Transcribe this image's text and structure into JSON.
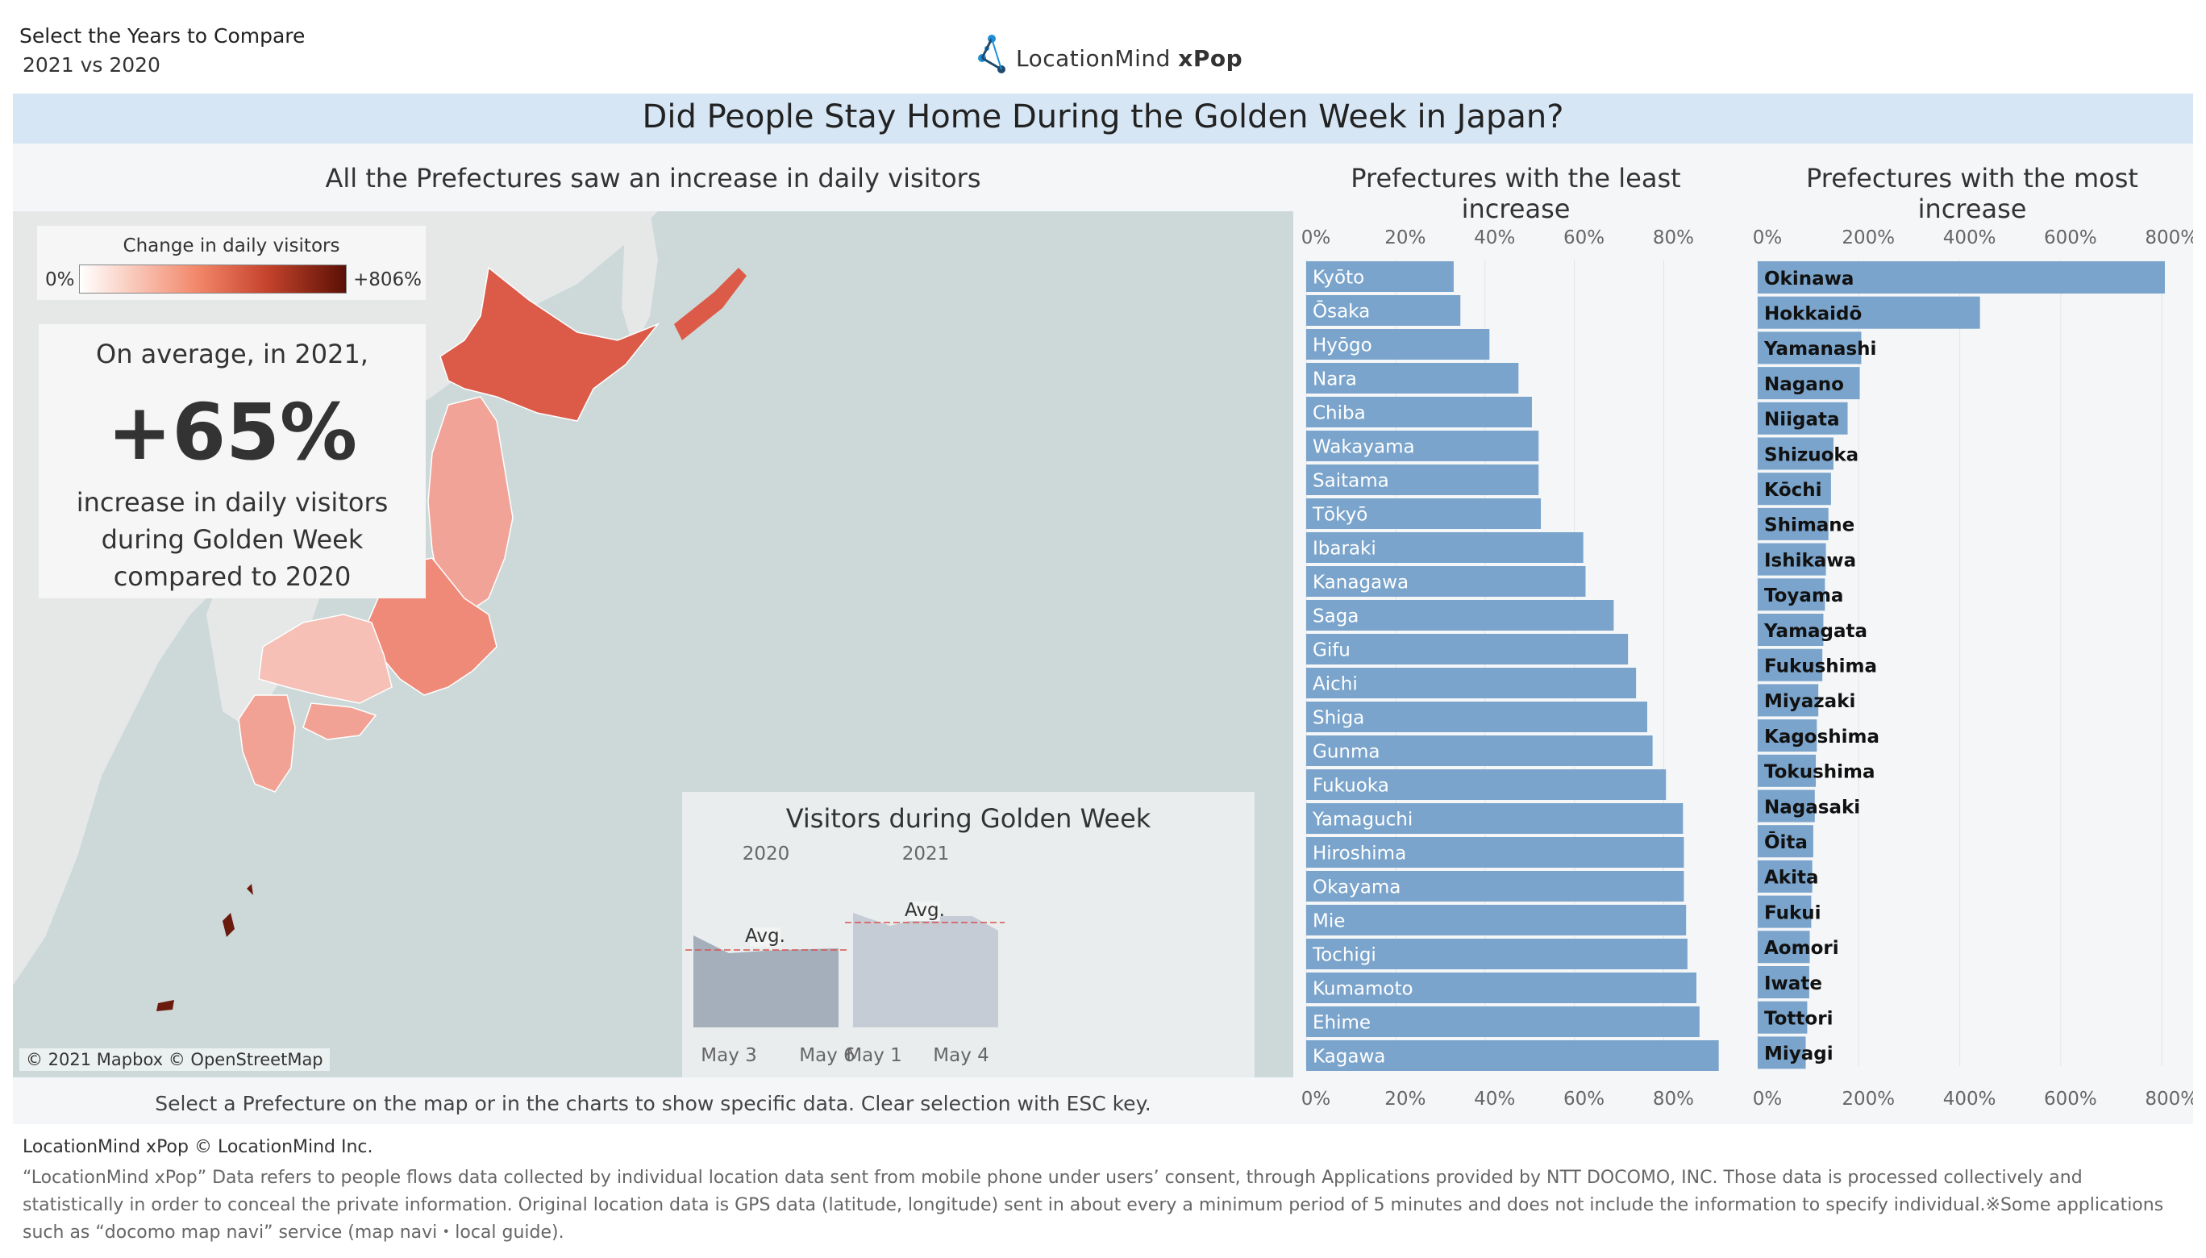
{
  "filter": {
    "label": "Select the Years to Compare",
    "value": "2021 vs 2020"
  },
  "logo": {
    "brand": "LocationMind",
    "product": "xPop"
  },
  "title": "Did People Stay Home During the Golden Week in Japan?",
  "map": {
    "title": "All the Prefectures saw an increase in daily visitors",
    "legend": {
      "title": "Change in daily visitors",
      "min": "0%",
      "max": "+806%"
    },
    "summary": {
      "pre": "On average, in 2021,",
      "value": "+65%",
      "line1": "increase in daily visitors",
      "line2": "during Golden Week",
      "line3": "compared to 2020"
    },
    "attribution": "© 2021 Mapbox © OpenStreetMap",
    "hint": "Select a Prefecture on the map or in the charts to show specific data. Clear selection with ESC key."
  },
  "inset": {
    "title": "Visitors during Golden Week",
    "year_a": "2020",
    "year_b": "2021",
    "avg_label": "Avg.",
    "x_labels_a": [
      "May 3",
      "May 6"
    ],
    "x_labels_b": [
      "May 1",
      "May 4"
    ]
  },
  "colors": {
    "bar": "#7aa4cb",
    "title_band": "#d6e6f4",
    "map_sea": "#cdd9d9",
    "avg_line": "#d9534f"
  },
  "chart_data": [
    {
      "type": "bar",
      "title": "Prefectures with the least increase",
      "orientation": "horizontal",
      "xlim": [
        0,
        0.92
      ],
      "ticks": [
        "0%",
        "20%",
        "40%",
        "60%",
        "80%"
      ],
      "categories": [
        "Kyōto",
        "Ōsaka",
        "Hyōgo",
        "Nara",
        "Chiba",
        "Wakayama",
        "Saitama",
        "Tōkyō",
        "Ibaraki",
        "Kanagawa",
        "Saga",
        "Gifu",
        "Aichi",
        "Shiga",
        "Gunma",
        "Fukuoka",
        "Yamaguchi",
        "Hiroshima",
        "Okayama",
        "Mie",
        "Tochigi",
        "Kumamoto",
        "Ehime",
        "Kagawa"
      ],
      "values": [
        0.33,
        0.345,
        0.41,
        0.475,
        0.505,
        0.52,
        0.52,
        0.525,
        0.62,
        0.625,
        0.688,
        0.72,
        0.738,
        0.763,
        0.775,
        0.805,
        0.843,
        0.845,
        0.845,
        0.85,
        0.853,
        0.873,
        0.88,
        0.923
      ]
    },
    {
      "type": "bar",
      "title": "Prefectures with the most increase",
      "orientation": "horizontal",
      "xlim": [
        0,
        8.3
      ],
      "ticks": [
        "0%",
        "200%",
        "400%",
        "600%",
        "800%"
      ],
      "categories": [
        "Okinawa",
        "Hokkaidō",
        "Yamanashi",
        "Nagano",
        "Niigata",
        "Shizuoka",
        "Kōchi",
        "Shimane",
        "Ishikawa",
        "Toyama",
        "Yamagata",
        "Fukushima",
        "Miyazaki",
        "Kagoshima",
        "Tokushima",
        "Nagasaki",
        "Ōita",
        "Akita",
        "Fukui",
        "Aomori",
        "Iwate",
        "Tottori",
        "Miyagi"
      ],
      "values": [
        8.06,
        4.4,
        2.05,
        2.02,
        1.78,
        1.5,
        1.45,
        1.4,
        1.35,
        1.33,
        1.3,
        1.28,
        1.2,
        1.17,
        1.15,
        1.13,
        1.1,
        1.08,
        1.06,
        1.03,
        1.02,
        0.98,
        0.95
      ]
    }
  ],
  "footer": {
    "head": "LocationMind xPop © LocationMind Inc.",
    "body": "“LocationMind xPop” Data refers to people flows data collected by individual location data sent from mobile phone under users’ consent, through Applications provided by NTT DOCOMO, INC. Those data is processed collectively and statistically in order to conceal the private information. Original location data is GPS data (latitude, longitude) sent in about every a minimum period of  5 minutes and does not include the information to specify individual.※Some applications such as “docomo map navi” service (map navi・local guide)."
  }
}
